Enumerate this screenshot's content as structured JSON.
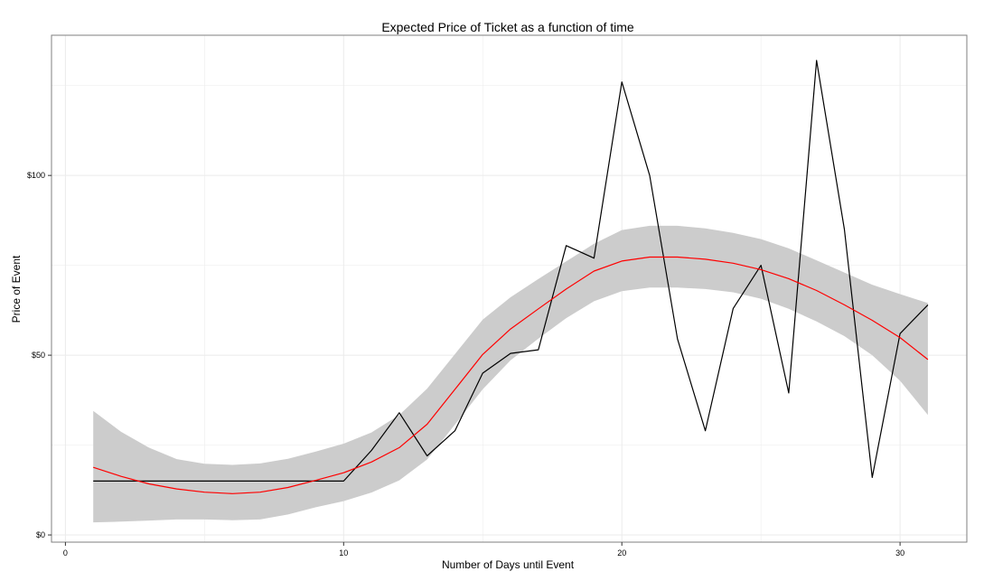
{
  "chart_data": {
    "type": "line",
    "title": "Expected Price of Ticket as a function of time",
    "xlabel": "Number of Days until Event",
    "ylabel": "Price of Event",
    "xlim": [
      -0.5,
      32.4
    ],
    "ylim": [
      -2,
      139
    ],
    "xticks": [
      0,
      10,
      20,
      30
    ],
    "xtick_labels": [
      "0",
      "10",
      "20",
      "30"
    ],
    "yticks": [
      0,
      50,
      100
    ],
    "ytick_labels": [
      "$0",
      "$50",
      "$100"
    ],
    "grid": true,
    "legend": "none",
    "colors": {
      "price_line": "#000000",
      "smooth_line": "#ff0000",
      "confidence_band": "#cccccc",
      "grid": "#ebebeb",
      "panel_border": "#7f7f7f"
    },
    "series": [
      {
        "values": [
          [
            1,
            15
          ],
          [
            2,
            15
          ],
          [
            3,
            15
          ],
          [
            4,
            15
          ],
          [
            5,
            15
          ],
          [
            6,
            15
          ],
          [
            7,
            15
          ],
          [
            8,
            15
          ],
          [
            9,
            15
          ],
          [
            10,
            15
          ],
          [
            11,
            23.5
          ],
          [
            12,
            34
          ],
          [
            13,
            22
          ],
          [
            14,
            29
          ],
          [
            15,
            45
          ],
          [
            16,
            50.5
          ],
          [
            17,
            51.5
          ],
          [
            18,
            80.5
          ],
          [
            19,
            77
          ],
          [
            20,
            126
          ],
          [
            21,
            100
          ],
          [
            22,
            54.5
          ],
          [
            23,
            29
          ],
          [
            24,
            63
          ],
          [
            25,
            75
          ],
          [
            26,
            39.5
          ],
          [
            27,
            132
          ],
          [
            28,
            85
          ],
          [
            29,
            16
          ],
          [
            30,
            56
          ],
          [
            31,
            64
          ]
        ]
      },
      {
        "values": [
          [
            1,
            18.8
          ],
          [
            2,
            16.3
          ],
          [
            3,
            14.2
          ],
          [
            4,
            12.8
          ],
          [
            5,
            11.9
          ],
          [
            6,
            11.5
          ],
          [
            7,
            11.9
          ],
          [
            8,
            13.2
          ],
          [
            9,
            15.2
          ],
          [
            10,
            17.3
          ],
          [
            11,
            20.3
          ],
          [
            12,
            24.3
          ],
          [
            13,
            30.8
          ],
          [
            14,
            40.5
          ],
          [
            15,
            50.2
          ],
          [
            16,
            57.3
          ],
          [
            17,
            62.9
          ],
          [
            18,
            68.4
          ],
          [
            19,
            73.4
          ],
          [
            20,
            76.2
          ],
          [
            21,
            77.3
          ],
          [
            22,
            77.3
          ],
          [
            23,
            76.7
          ],
          [
            24,
            75.6
          ],
          [
            25,
            73.8
          ],
          [
            26,
            71.3
          ],
          [
            27,
            68.0
          ],
          [
            28,
            64.0
          ],
          [
            29,
            59.7
          ],
          [
            30,
            54.9
          ],
          [
            31,
            48.8
          ]
        ]
      }
    ],
    "band": {
      "x": [
        1,
        2,
        3,
        4,
        5,
        6,
        7,
        8,
        9,
        10,
        11,
        12,
        13,
        14,
        15,
        16,
        17,
        18,
        19,
        20,
        21,
        22,
        23,
        24,
        25,
        26,
        27,
        28,
        29,
        30,
        31
      ],
      "upper": [
        34.5,
        28.7,
        24.3,
        21.1,
        19.8,
        19.5,
        19.9,
        21.2,
        23.2,
        25.4,
        28.5,
        33.4,
        40.7,
        50.3,
        59.9,
        66.1,
        71.2,
        76.1,
        81.0,
        84.8,
        86.0,
        86.0,
        85.3,
        84.0,
        82.3,
        79.7,
        76.4,
        73.0,
        69.6,
        67.0,
        64.5
      ],
      "lower": [
        3.5,
        3.7,
        4.0,
        4.3,
        4.3,
        4.1,
        4.3,
        5.7,
        7.7,
        9.4,
        11.8,
        15.2,
        21.0,
        30.7,
        40.5,
        48.6,
        54.6,
        60.3,
        65.0,
        67.8,
        68.8,
        68.8,
        68.4,
        67.5,
        65.7,
        62.9,
        59.4,
        55.3,
        50.0,
        42.9,
        33.4
      ]
    }
  }
}
